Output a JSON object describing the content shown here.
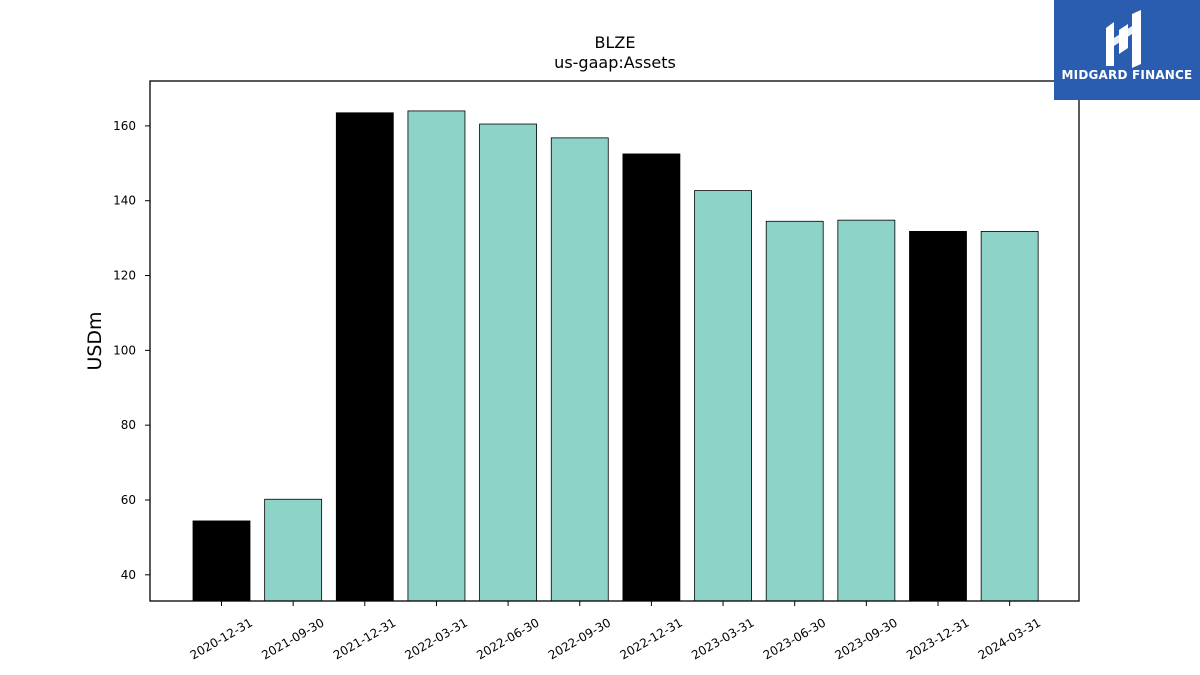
{
  "brand": {
    "name": "MIDGARD FINANCE",
    "color": "#2a5db0"
  },
  "chart_data": {
    "type": "bar",
    "title": "BLZE",
    "subtitle": "us-gaap:Assets",
    "xlabel": "",
    "ylabel": "USDm",
    "ylim": [
      33,
      172
    ],
    "yticks": [
      40,
      60,
      80,
      100,
      120,
      140,
      160
    ],
    "grid": false,
    "categories": [
      "2020-12-31",
      "2021-09-30",
      "2021-12-31",
      "2022-03-31",
      "2022-06-30",
      "2022-09-30",
      "2022-12-31",
      "2023-03-31",
      "2023-06-30",
      "2023-09-30",
      "2023-12-31",
      "2024-03-31"
    ],
    "values": [
      54.4,
      60.2,
      163.5,
      164.0,
      160.5,
      156.8,
      152.5,
      142.7,
      134.5,
      134.8,
      131.8,
      131.8
    ],
    "bar_colors": [
      "#000000",
      "#8dd3c7",
      "#000000",
      "#8dd3c7",
      "#8dd3c7",
      "#8dd3c7",
      "#000000",
      "#8dd3c7",
      "#8dd3c7",
      "#8dd3c7",
      "#000000",
      "#8dd3c7"
    ]
  }
}
